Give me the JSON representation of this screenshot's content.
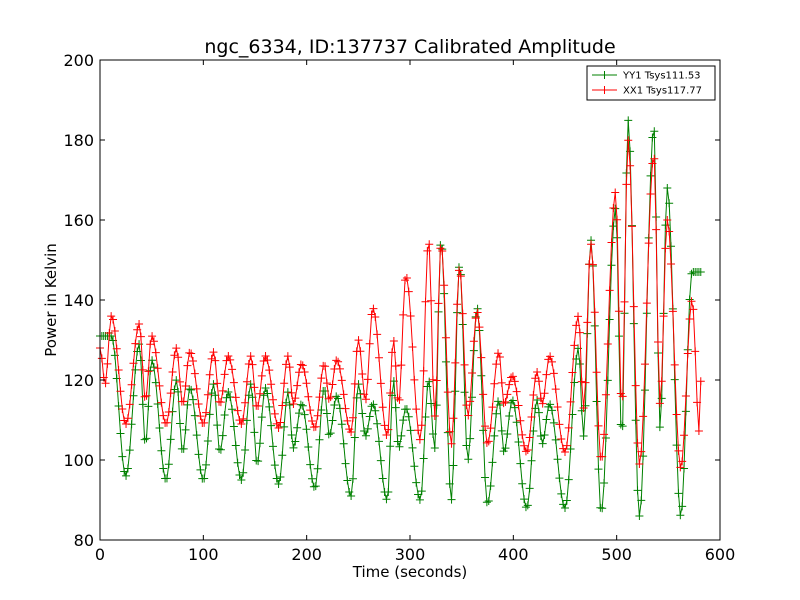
{
  "chart_data": {
    "type": "line",
    "title": "ngc_6334, ID:137737 Calibrated Amplitude",
    "xlabel": "Time (seconds)",
    "ylabel": "Power in Kelvin",
    "xlim": [
      0,
      600
    ],
    "ylim": [
      80,
      200
    ],
    "xticks": [
      0,
      100,
      200,
      300,
      400,
      500,
      600
    ],
    "yticks": [
      80,
      100,
      120,
      140,
      160,
      180,
      200
    ],
    "grid": false,
    "legend_position": "top-right",
    "marker": "+",
    "x_range": [
      0,
      582
    ],
    "series": [
      {
        "name": "YY1 Tsys111.53",
        "color": "#008000",
        "peaks": [
          {
            "x": 11,
            "y": 131
          },
          {
            "x": 25,
            "y": 96
          },
          {
            "x": 38,
            "y": 129
          },
          {
            "x": 44,
            "y": 104
          },
          {
            "x": 50,
            "y": 125
          },
          {
            "x": 64,
            "y": 95
          },
          {
            "x": 74,
            "y": 120
          },
          {
            "x": 80,
            "y": 102
          },
          {
            "x": 87,
            "y": 118
          },
          {
            "x": 100,
            "y": 95
          },
          {
            "x": 110,
            "y": 119
          },
          {
            "x": 116,
            "y": 102
          },
          {
            "x": 124,
            "y": 117
          },
          {
            "x": 137,
            "y": 95
          },
          {
            "x": 146,
            "y": 119
          },
          {
            "x": 152,
            "y": 99
          },
          {
            "x": 160,
            "y": 118
          },
          {
            "x": 173,
            "y": 94
          },
          {
            "x": 182,
            "y": 117
          },
          {
            "x": 187,
            "y": 103
          },
          {
            "x": 195,
            "y": 114
          },
          {
            "x": 208,
            "y": 93
          },
          {
            "x": 217,
            "y": 118
          },
          {
            "x": 222,
            "y": 106
          },
          {
            "x": 229,
            "y": 116
          },
          {
            "x": 243,
            "y": 91
          },
          {
            "x": 250,
            "y": 119
          },
          {
            "x": 257,
            "y": 106
          },
          {
            "x": 264,
            "y": 114
          },
          {
            "x": 278,
            "y": 90
          },
          {
            "x": 284,
            "y": 120
          },
          {
            "x": 289,
            "y": 103
          },
          {
            "x": 296,
            "y": 113
          },
          {
            "x": 310,
            "y": 90
          },
          {
            "x": 318,
            "y": 120
          },
          {
            "x": 324,
            "y": 103
          },
          {
            "x": 330,
            "y": 155
          },
          {
            "x": 340,
            "y": 90
          },
          {
            "x": 348,
            "y": 149
          },
          {
            "x": 356,
            "y": 100
          },
          {
            "x": 365,
            "y": 138
          },
          {
            "x": 375,
            "y": 89
          },
          {
            "x": 386,
            "y": 115
          },
          {
            "x": 391,
            "y": 102
          },
          {
            "x": 399,
            "y": 115
          },
          {
            "x": 413,
            "y": 88
          },
          {
            "x": 423,
            "y": 115
          },
          {
            "x": 428,
            "y": 104
          },
          {
            "x": 435,
            "y": 114
          },
          {
            "x": 450,
            "y": 88
          },
          {
            "x": 463,
            "y": 128
          },
          {
            "x": 468,
            "y": 106
          },
          {
            "x": 475,
            "y": 155
          },
          {
            "x": 485,
            "y": 87
          },
          {
            "x": 499,
            "y": 163
          },
          {
            "x": 505,
            "y": 105
          },
          {
            "x": 511,
            "y": 185
          },
          {
            "x": 522,
            "y": 86
          },
          {
            "x": 536,
            "y": 183
          },
          {
            "x": 542,
            "y": 108
          },
          {
            "x": 549,
            "y": 168
          },
          {
            "x": 562,
            "y": 86
          },
          {
            "x": 573,
            "y": 147
          }
        ]
      },
      {
        "name": "XX1 Tsys117.77",
        "color": "#ff0000",
        "peaks": [
          {
            "x": 0,
            "y": 128
          },
          {
            "x": 5,
            "y": 119
          },
          {
            "x": 11,
            "y": 136
          },
          {
            "x": 25,
            "y": 109
          },
          {
            "x": 38,
            "y": 134
          },
          {
            "x": 44,
            "y": 115
          },
          {
            "x": 50,
            "y": 131
          },
          {
            "x": 64,
            "y": 109
          },
          {
            "x": 74,
            "y": 128
          },
          {
            "x": 80,
            "y": 114
          },
          {
            "x": 87,
            "y": 127
          },
          {
            "x": 100,
            "y": 109
          },
          {
            "x": 110,
            "y": 127
          },
          {
            "x": 116,
            "y": 114
          },
          {
            "x": 124,
            "y": 126
          },
          {
            "x": 137,
            "y": 109
          },
          {
            "x": 146,
            "y": 126
          },
          {
            "x": 152,
            "y": 113
          },
          {
            "x": 160,
            "y": 126
          },
          {
            "x": 173,
            "y": 108
          },
          {
            "x": 182,
            "y": 126
          },
          {
            "x": 187,
            "y": 114
          },
          {
            "x": 195,
            "y": 124
          },
          {
            "x": 208,
            "y": 108
          },
          {
            "x": 217,
            "y": 124
          },
          {
            "x": 222,
            "y": 115
          },
          {
            "x": 229,
            "y": 125
          },
          {
            "x": 243,
            "y": 107
          },
          {
            "x": 250,
            "y": 130
          },
          {
            "x": 257,
            "y": 115
          },
          {
            "x": 264,
            "y": 138
          },
          {
            "x": 278,
            "y": 106
          },
          {
            "x": 284,
            "y": 130
          },
          {
            "x": 289,
            "y": 114
          },
          {
            "x": 296,
            "y": 146
          },
          {
            "x": 310,
            "y": 105
          },
          {
            "x": 318,
            "y": 155
          },
          {
            "x": 324,
            "y": 111
          },
          {
            "x": 330,
            "y": 154
          },
          {
            "x": 340,
            "y": 104
          },
          {
            "x": 348,
            "y": 148
          },
          {
            "x": 356,
            "y": 111
          },
          {
            "x": 365,
            "y": 137
          },
          {
            "x": 375,
            "y": 104
          },
          {
            "x": 386,
            "y": 127
          },
          {
            "x": 391,
            "y": 114
          },
          {
            "x": 399,
            "y": 121
          },
          {
            "x": 413,
            "y": 102
          },
          {
            "x": 423,
            "y": 122
          },
          {
            "x": 428,
            "y": 114
          },
          {
            "x": 435,
            "y": 126
          },
          {
            "x": 450,
            "y": 102
          },
          {
            "x": 463,
            "y": 136
          },
          {
            "x": 468,
            "y": 113
          },
          {
            "x": 475,
            "y": 154
          },
          {
            "x": 485,
            "y": 100
          },
          {
            "x": 499,
            "y": 167
          },
          {
            "x": 505,
            "y": 113
          },
          {
            "x": 511,
            "y": 180
          },
          {
            "x": 522,
            "y": 99
          },
          {
            "x": 536,
            "y": 176
          },
          {
            "x": 542,
            "y": 114
          },
          {
            "x": 549,
            "y": 160
          },
          {
            "x": 562,
            "y": 98
          },
          {
            "x": 573,
            "y": 140
          },
          {
            "x": 580,
            "y": 107
          },
          {
            "x": 582,
            "y": 123
          }
        ]
      }
    ]
  }
}
